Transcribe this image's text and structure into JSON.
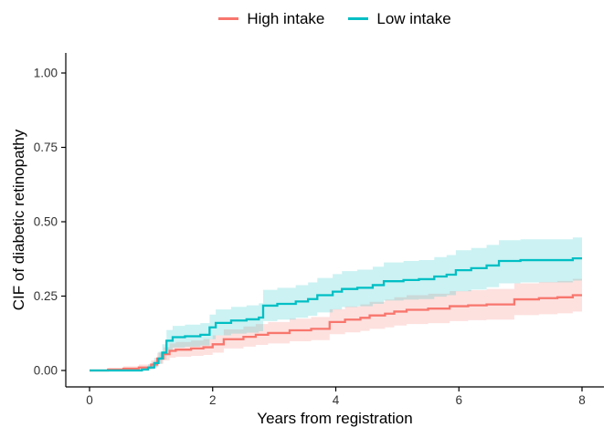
{
  "chart_data": {
    "type": "line",
    "subtype": "step-cumulative-incidence-with-confidence-bands",
    "title": "",
    "xlabel": "Years from registration",
    "ylabel": "CIF of diabetic retinopathy",
    "xlim": [
      0,
      8
    ],
    "ylim": [
      0,
      1
    ],
    "xticks": [
      0,
      2,
      4,
      6,
      8
    ],
    "yticks": [
      0,
      0.25,
      0.5,
      0.75,
      1
    ],
    "ytick_labels": [
      "0.00",
      "0.25",
      "0.50",
      "0.75",
      "1.00"
    ],
    "grid": false,
    "legend_position": "top-center",
    "axis_color": "#000000",
    "tick_label_color": "#333333",
    "series": [
      {
        "name": "High intake",
        "color": "#F8766D",
        "band_color": "rgba(248,118,109,0.22)",
        "points_format": [
          "years",
          "cif",
          "ci_lower",
          "ci_upper"
        ],
        "points": [
          [
            0.0,
            0.0,
            0.0,
            0.0
          ],
          [
            0.3,
            0.003,
            0.0,
            0.009
          ],
          [
            0.55,
            0.006,
            0.001,
            0.014
          ],
          [
            0.8,
            0.01,
            0.003,
            0.02
          ],
          [
            1.0,
            0.02,
            0.009,
            0.034
          ],
          [
            1.1,
            0.04,
            0.023,
            0.06
          ],
          [
            1.2,
            0.055,
            0.034,
            0.078
          ],
          [
            1.3,
            0.066,
            0.043,
            0.091
          ],
          [
            1.4,
            0.07,
            0.046,
            0.096
          ],
          [
            1.65,
            0.074,
            0.049,
            0.101
          ],
          [
            1.85,
            0.078,
            0.052,
            0.106
          ],
          [
            2.0,
            0.088,
            0.06,
            0.118
          ],
          [
            2.18,
            0.105,
            0.074,
            0.138
          ],
          [
            2.5,
            0.113,
            0.08,
            0.148
          ],
          [
            2.7,
            0.12,
            0.086,
            0.156
          ],
          [
            2.9,
            0.126,
            0.091,
            0.163
          ],
          [
            3.25,
            0.135,
            0.098,
            0.174
          ],
          [
            3.6,
            0.14,
            0.102,
            0.18
          ],
          [
            3.9,
            0.163,
            0.122,
            0.206
          ],
          [
            4.15,
            0.171,
            0.128,
            0.215
          ],
          [
            4.4,
            0.177,
            0.133,
            0.222
          ],
          [
            4.55,
            0.185,
            0.14,
            0.231
          ],
          [
            4.8,
            0.191,
            0.145,
            0.238
          ],
          [
            4.95,
            0.198,
            0.151,
            0.246
          ],
          [
            5.15,
            0.204,
            0.156,
            0.253
          ],
          [
            5.5,
            0.208,
            0.159,
            0.258
          ],
          [
            5.85,
            0.216,
            0.166,
            0.267
          ],
          [
            6.15,
            0.219,
            0.169,
            0.27
          ],
          [
            6.45,
            0.222,
            0.171,
            0.274
          ],
          [
            6.9,
            0.239,
            0.186,
            0.293
          ],
          [
            7.3,
            0.243,
            0.189,
            0.297
          ],
          [
            7.6,
            0.246,
            0.192,
            0.301
          ],
          [
            7.85,
            0.253,
            0.198,
            0.308
          ],
          [
            8.0,
            0.253,
            0.198,
            0.308
          ]
        ]
      },
      {
        "name": "Low intake",
        "color": "#00BFC4",
        "band_color": "rgba(0,191,196,0.20)",
        "points_format": [
          "years",
          "cif",
          "ci_lower",
          "ci_upper"
        ],
        "points": [
          [
            0.0,
            0.0,
            0.0,
            0.0
          ],
          [
            0.85,
            0.003,
            0.0,
            0.01
          ],
          [
            0.95,
            0.01,
            0.003,
            0.021
          ],
          [
            1.05,
            0.025,
            0.012,
            0.043
          ],
          [
            1.12,
            0.04,
            0.022,
            0.063
          ],
          [
            1.18,
            0.06,
            0.037,
            0.088
          ],
          [
            1.25,
            0.1,
            0.068,
            0.136
          ],
          [
            1.35,
            0.112,
            0.077,
            0.15
          ],
          [
            1.55,
            0.115,
            0.08,
            0.154
          ],
          [
            1.8,
            0.12,
            0.084,
            0.159
          ],
          [
            1.95,
            0.145,
            0.105,
            0.188
          ],
          [
            2.05,
            0.16,
            0.118,
            0.205
          ],
          [
            2.3,
            0.168,
            0.124,
            0.214
          ],
          [
            2.55,
            0.172,
            0.127,
            0.219
          ],
          [
            2.75,
            0.178,
            0.132,
            0.226
          ],
          [
            2.82,
            0.218,
            0.166,
            0.271
          ],
          [
            3.05,
            0.224,
            0.171,
            0.278
          ],
          [
            3.35,
            0.232,
            0.177,
            0.287
          ],
          [
            3.55,
            0.24,
            0.184,
            0.296
          ],
          [
            3.7,
            0.253,
            0.195,
            0.311
          ],
          [
            3.95,
            0.265,
            0.205,
            0.324
          ],
          [
            4.1,
            0.274,
            0.213,
            0.334
          ],
          [
            4.35,
            0.278,
            0.216,
            0.339
          ],
          [
            4.6,
            0.287,
            0.224,
            0.349
          ],
          [
            4.78,
            0.3,
            0.235,
            0.363
          ],
          [
            5.1,
            0.304,
            0.238,
            0.368
          ],
          [
            5.35,
            0.307,
            0.24,
            0.371
          ],
          [
            5.6,
            0.316,
            0.248,
            0.381
          ],
          [
            5.8,
            0.322,
            0.253,
            0.388
          ],
          [
            5.95,
            0.337,
            0.266,
            0.404
          ],
          [
            6.2,
            0.344,
            0.272,
            0.412
          ],
          [
            6.45,
            0.353,
            0.28,
            0.422
          ],
          [
            6.65,
            0.368,
            0.293,
            0.438
          ],
          [
            7.0,
            0.371,
            0.296,
            0.441
          ],
          [
            7.85,
            0.377,
            0.302,
            0.447
          ],
          [
            8.0,
            0.377,
            0.302,
            0.447
          ]
        ]
      }
    ]
  }
}
